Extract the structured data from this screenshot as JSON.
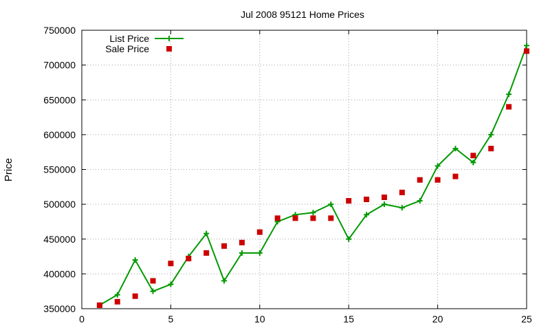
{
  "chart_data": {
    "type": "line",
    "title": "Jul 2008 95121 Home Prices",
    "xlabel": "",
    "ylabel": "Price",
    "xlim": [
      0,
      25
    ],
    "ylim": [
      350000,
      750000
    ],
    "xticks": [
      0,
      5,
      10,
      15,
      20,
      25
    ],
    "yticks": [
      350000,
      400000,
      450000,
      500000,
      550000,
      600000,
      650000,
      700000,
      750000
    ],
    "grid": true,
    "legend_position": "top-left",
    "series": [
      {
        "name": "List Price",
        "style": "line-with-plus-markers",
        "color": "#009900",
        "x": [
          1,
          2,
          3,
          4,
          5,
          6,
          7,
          8,
          9,
          10,
          11,
          12,
          13,
          14,
          15,
          16,
          17,
          18,
          19,
          20,
          21,
          22,
          23,
          24,
          25
        ],
        "values": [
          355000,
          370000,
          420000,
          375000,
          385000,
          425000,
          458000,
          390000,
          430000,
          430000,
          475000,
          485000,
          488000,
          500000,
          450000,
          485000,
          500000,
          495000,
          505000,
          555000,
          580000,
          560000,
          600000,
          658000,
          728000
        ]
      },
      {
        "name": "Sale Price",
        "style": "square-markers",
        "color": "#cc0000",
        "x": [
          1,
          2,
          3,
          4,
          5,
          6,
          7,
          8,
          9,
          10,
          11,
          12,
          13,
          14,
          15,
          16,
          17,
          18,
          19,
          20,
          21,
          22,
          23,
          24,
          25
        ],
        "values": [
          355000,
          360000,
          368000,
          390000,
          415000,
          422000,
          430000,
          440000,
          445000,
          460000,
          480000,
          480000,
          480000,
          480000,
          505000,
          507000,
          510000,
          517000,
          535000,
          535000,
          540000,
          570000,
          580000,
          640000,
          720000
        ]
      }
    ]
  }
}
